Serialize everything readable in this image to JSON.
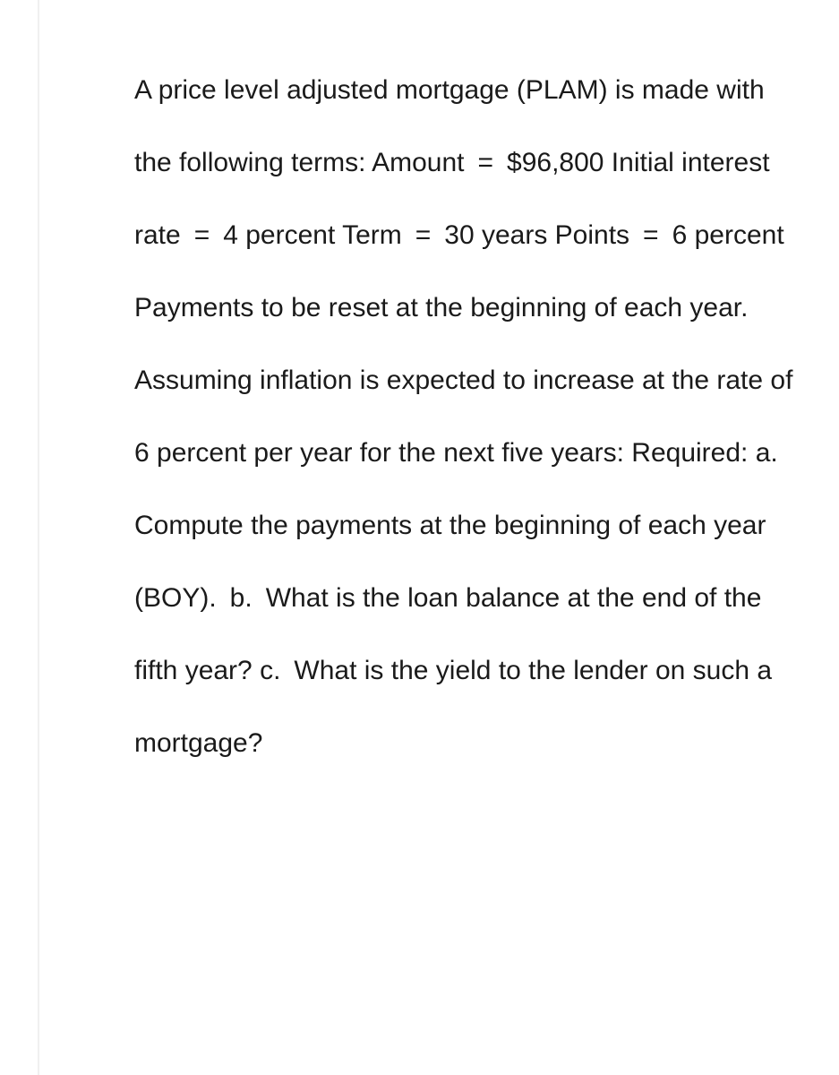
{
  "document": {
    "text": "A price level adjusted mortgage (PLAM) is made with the following terms: Amount = $96,800 Initial interest rate = 4 percent Term = 30 years Points = 6 percent Payments to be reset at the beginning of each year. Assuming inflation is expected to increase at the rate of 6 percent per year for the next five years: Required: a. Compute the payments at the beginning of each year (BOY). b. What is the loan balance at the end of the fifth year? c. What is the yield to the lender on such a mortgage?",
    "font_size": 30,
    "line_height": 2.7,
    "text_color": "#1a1a1a",
    "background_color": "#ffffff",
    "border_color": "#f0f0f0"
  }
}
